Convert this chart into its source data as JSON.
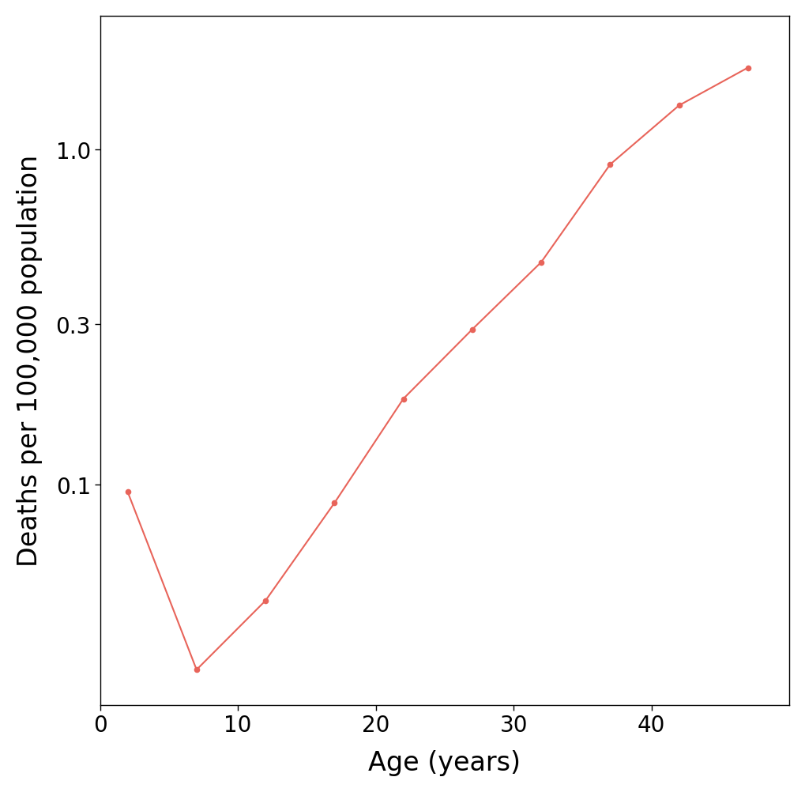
{
  "x": [
    2,
    7,
    12,
    17,
    22,
    27,
    32,
    37,
    42,
    47
  ],
  "y": [
    0.095,
    0.028,
    0.045,
    0.088,
    0.18,
    0.29,
    0.46,
    0.9,
    1.35,
    1.75
  ],
  "line_color": "#E8645A",
  "marker_color": "#E8645A",
  "xlabel": "Age (years)",
  "ylabel": "Deaths per 100,000 population",
  "xlim": [
    0,
    50
  ],
  "ylim_log": [
    0.022,
    2.5
  ],
  "xticks": [
    0,
    10,
    20,
    30,
    40
  ],
  "yticks": [
    0.1,
    0.3,
    1.0
  ],
  "ytick_labels": [
    "0.1",
    "0.3",
    "1.0"
  ],
  "background_color": "#ffffff",
  "line_width": 1.5,
  "marker_size": 5.5
}
